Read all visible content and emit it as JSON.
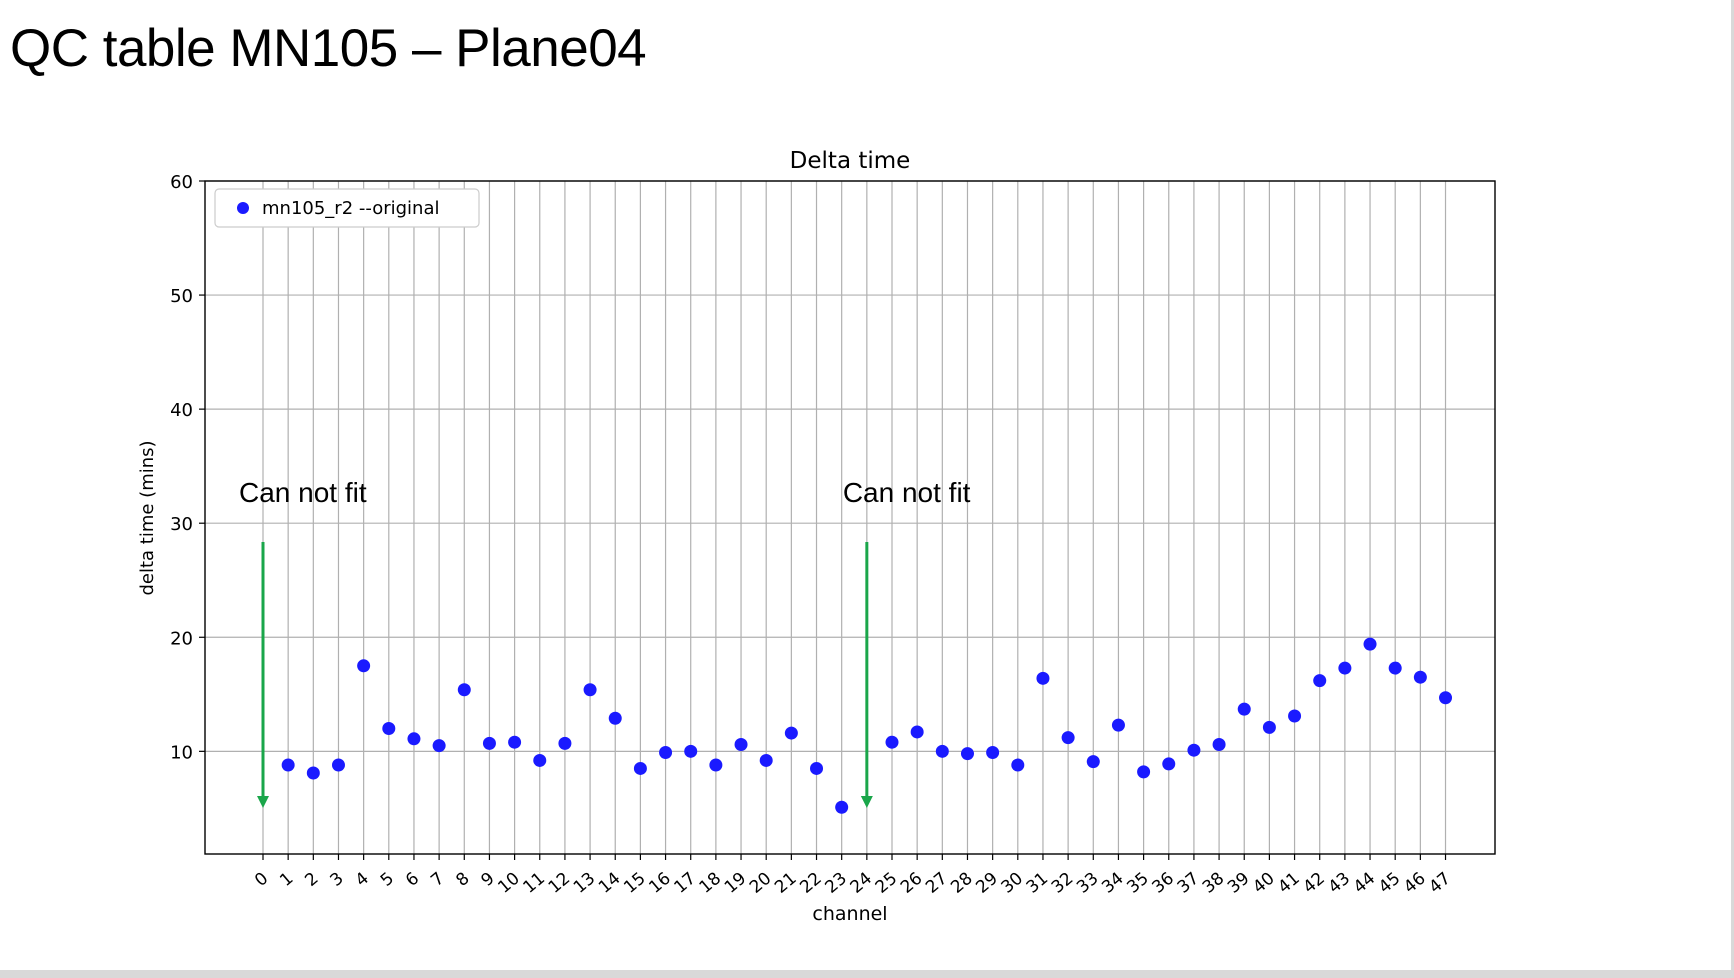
{
  "slide": {
    "title": "QC table MN105 – Plane04"
  },
  "colors": {
    "marker": "#1a1aff",
    "arrow": "#1aa64a",
    "grid": "#b0b0b0",
    "axis": "#000000"
  },
  "annotations": [
    {
      "text": "Can not fit",
      "channel": 0
    },
    {
      "text": "Can not fit",
      "channel": 24
    }
  ],
  "chart_data": {
    "type": "scatter",
    "title": "Delta time",
    "xlabel": "channel",
    "ylabel": "delta time (mins)",
    "ylim": [
      1,
      60
    ],
    "yticks": [
      10,
      20,
      30,
      40,
      50,
      60
    ],
    "xticks": [
      0,
      1,
      2,
      3,
      4,
      5,
      6,
      7,
      8,
      9,
      10,
      11,
      12,
      13,
      14,
      15,
      16,
      17,
      18,
      19,
      20,
      21,
      22,
      23,
      24,
      25,
      26,
      27,
      28,
      29,
      30,
      31,
      32,
      33,
      34,
      35,
      36,
      37,
      38,
      39,
      40,
      41,
      42,
      43,
      44,
      45,
      46,
      47
    ],
    "grid": true,
    "legend_position": "top-left",
    "series": [
      {
        "name": "mn105_r2 --original",
        "x": [
          1,
          2,
          3,
          4,
          5,
          6,
          7,
          8,
          9,
          10,
          11,
          12,
          13,
          14,
          15,
          16,
          17,
          18,
          19,
          20,
          21,
          22,
          23,
          25,
          26,
          27,
          28,
          29,
          30,
          31,
          32,
          33,
          34,
          35,
          36,
          37,
          38,
          39,
          40,
          41,
          42,
          43,
          44,
          45,
          46,
          47
        ],
        "y": [
          8.8,
          8.1,
          8.8,
          17.5,
          12.0,
          11.1,
          10.5,
          15.4,
          10.7,
          10.8,
          9.2,
          10.7,
          15.4,
          12.9,
          8.5,
          9.9,
          10.0,
          8.8,
          10.6,
          9.2,
          11.6,
          8.5,
          5.1,
          10.8,
          11.7,
          10.0,
          9.8,
          9.9,
          8.8,
          16.4,
          11.2,
          9.1,
          12.3,
          8.2,
          8.9,
          10.1,
          10.6,
          13.7,
          12.1,
          13.1,
          16.2,
          17.3,
          19.4,
          17.3,
          16.5,
          14.7
        ]
      }
    ]
  }
}
